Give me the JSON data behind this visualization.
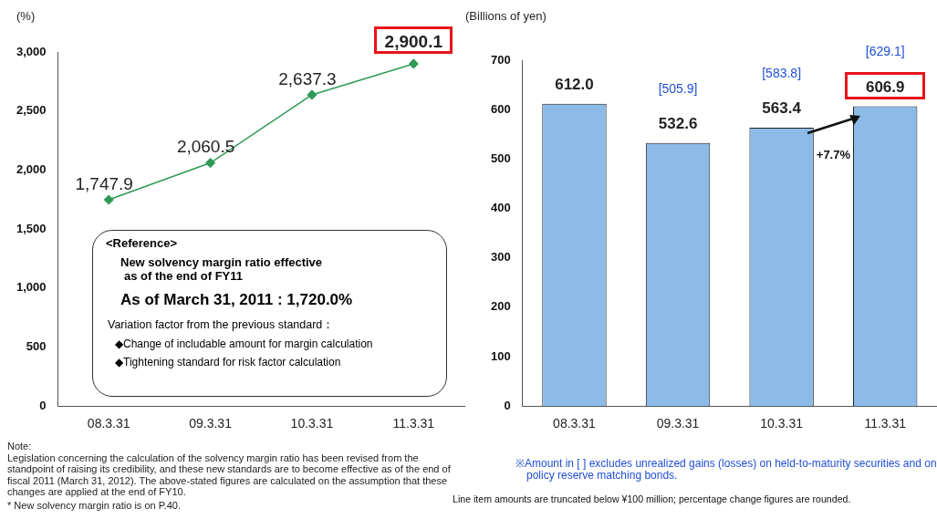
{
  "chart_data": [
    {
      "type": "line",
      "ylabel": "(%)",
      "categories": [
        "08.3.31",
        "09.3.31",
        "10.3.31",
        "11.3.31"
      ],
      "series": [
        {
          "color": "#2e9a55",
          "values": [
            1747.9,
            2060.5,
            2637.3,
            2900.1
          ],
          "value_labels": [
            "1,747.9",
            "2,060.5",
            "2,637.3",
            "2,900.1"
          ]
        }
      ],
      "ylim": [
        0,
        3000
      ],
      "yticks": [
        {
          "value": 0,
          "label": "0"
        },
        {
          "value": 500,
          "label": "500"
        },
        {
          "value": 1000,
          "label": "1,000"
        },
        {
          "value": 1500,
          "label": "1,500"
        },
        {
          "value": 2000,
          "label": "2,000"
        },
        {
          "value": 2500,
          "label": "2,500"
        },
        {
          "value": 3000,
          "label": "3,000"
        }
      ],
      "grid": false,
      "legend": false,
      "marker": "diamond",
      "line_style": "solid",
      "annotations": [
        "<Reference>",
        "New solvency margin ratio effective",
        "as of the end of FY11",
        "As of March 31, 2011 : 1,720.0%",
        "Variation factor from the previous standard：",
        "◆Change of includable amount for margin calculation",
        "◆Tightening standard for risk factor calculation",
        "Note:",
        "Legislation concerning the calculation of the solvency margin ratio has been revised from the standpoint of raising its credibility, and these new standards are to become effective as of the end of fiscal 2011 (March 31, 2012). The above-stated figures are calculated on the assumption that these changes are applied at the end of FY10.",
        "* New solvency margin ratio is on P.40."
      ]
    },
    {
      "type": "bar",
      "ylabel": "(Billions of yen)",
      "categories": [
        "08.3.31",
        "09.3.31",
        "10.3.31",
        "11.3.31"
      ],
      "series": [
        {
          "color": "#8cbbe8",
          "values": [
            612.0,
            532.6,
            563.4,
            606.9
          ],
          "value_labels": [
            "612.0",
            "532.6",
            "563.4",
            "606.9"
          ]
        }
      ],
      "ylim": [
        0,
        700
      ],
      "yticks": [
        0,
        100,
        200,
        300,
        400,
        500,
        600,
        700
      ],
      "grid": false,
      "legend": false,
      "annotations": [
        "[505.9]",
        "[583.8]",
        "[629.1]",
        "+7.7%",
        "※Amount in [ ] excludes unrealized gains (losses) on held-to-maturity securities and on policy reserve matching bonds.",
        "Line item amounts are truncated below ¥100 million; percentage change figures are rounded."
      ]
    }
  ]
}
